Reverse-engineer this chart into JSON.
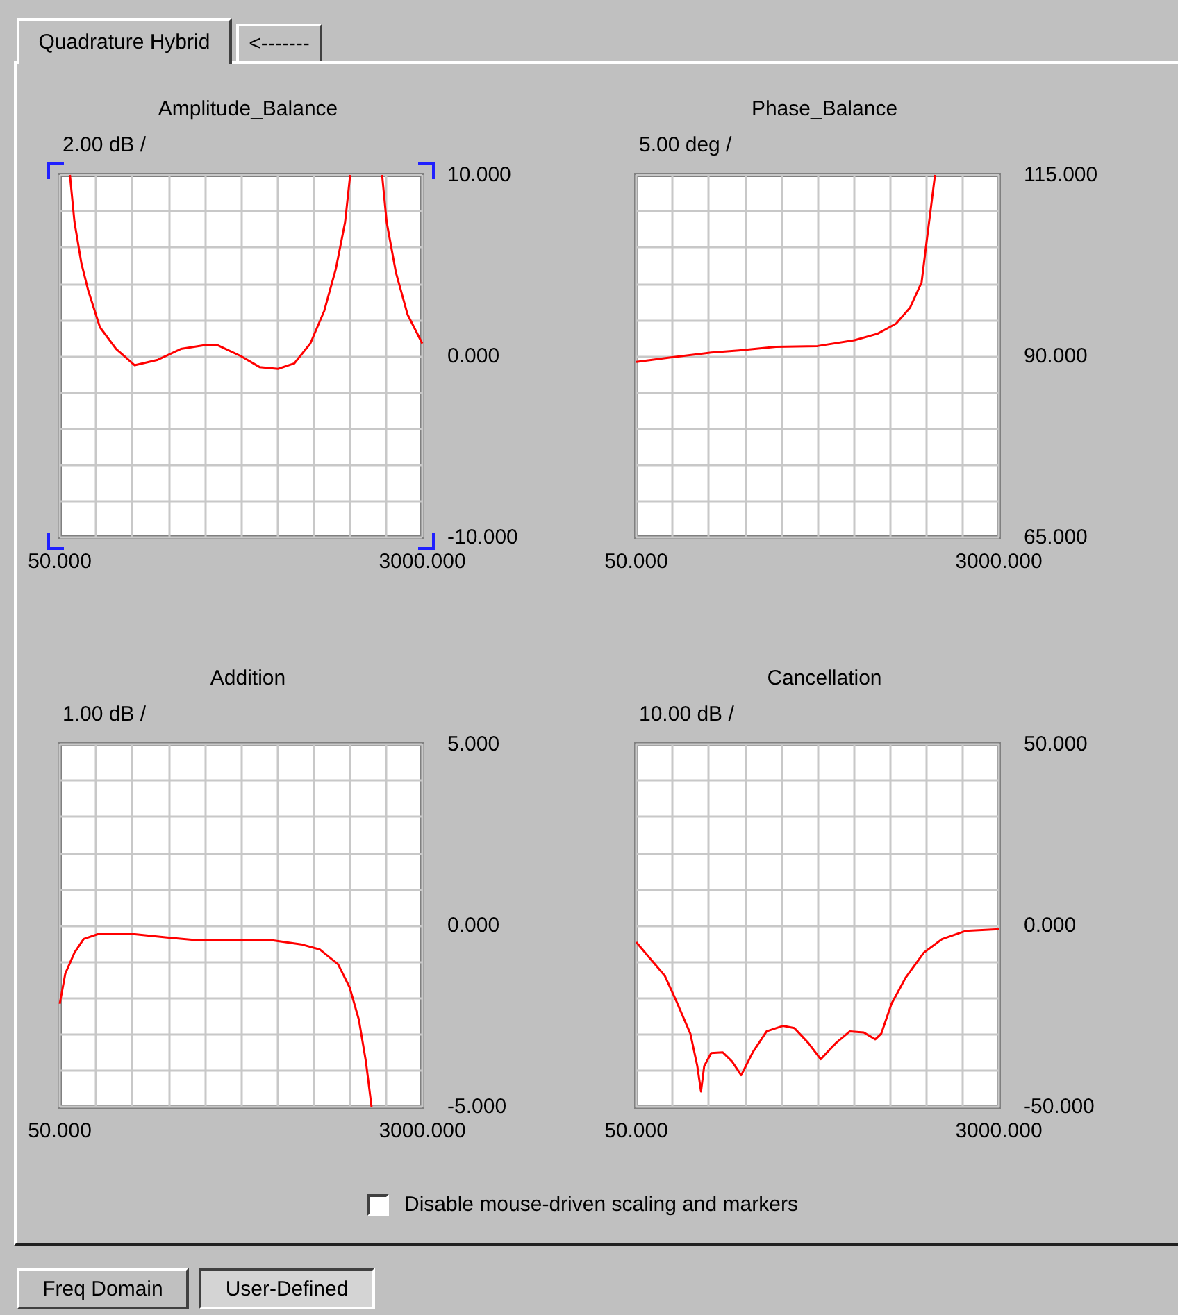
{
  "chart_data": [
    {
      "type": "line",
      "title": "Amplitude_Balance",
      "subtitle": "2.00 dB /",
      "color": "#ff0000",
      "marker": "none",
      "grid": true,
      "x": [
        133,
        170,
        227,
        283,
        377,
        509,
        660,
        848,
        1036,
        1224,
        1337,
        1525,
        1676,
        1826,
        1958,
        2089,
        2202,
        2296,
        2372,
        2413,
        2540,
        2673,
        2710,
        2786,
        2880,
        3000
      ],
      "values": [
        10,
        7.4,
        5.1,
        3.6,
        1.6,
        0.4,
        -0.5,
        -0.2,
        0.4,
        0.6,
        0.6,
        0.0,
        -0.6,
        -0.7,
        -0.4,
        0.7,
        2.5,
        4.8,
        7.4,
        10,
        null,
        10,
        7.4,
        4.6,
        2.3,
        0.7
      ],
      "xlim": [
        50,
        3000
      ],
      "xticks": [
        {
          "value": 50,
          "label": "50.000"
        },
        {
          "value": 345,
          "label": null
        },
        {
          "value": 640,
          "label": null
        },
        {
          "value": 935,
          "label": null
        },
        {
          "value": 1230,
          "label": null
        },
        {
          "value": 1525,
          "label": null
        },
        {
          "value": 1820,
          "label": null
        },
        {
          "value": 2115,
          "label": null
        },
        {
          "value": 2410,
          "label": null
        },
        {
          "value": 2705,
          "label": null
        },
        {
          "value": 3000,
          "label": "3000.000"
        }
      ],
      "ylim": [
        -10,
        10
      ],
      "yticks": [
        {
          "value": -10,
          "label": "-10.000"
        },
        {
          "value": -8,
          "label": null
        },
        {
          "value": -6,
          "label": null
        },
        {
          "value": -4,
          "label": null
        },
        {
          "value": -2,
          "label": null
        },
        {
          "value": 0,
          "label": "0.000"
        },
        {
          "value": 2,
          "label": null
        },
        {
          "value": 4,
          "label": null
        },
        {
          "value": 6,
          "label": null
        },
        {
          "value": 8,
          "label": null
        },
        {
          "value": 10,
          "label": "10.000"
        }
      ]
    },
    {
      "type": "line",
      "title": "Phase_Balance",
      "subtitle": "5.00 deg /",
      "color": "#ff0000",
      "marker": "none",
      "grid": true,
      "x": [
        50,
        321,
        660,
        885,
        1186,
        1525,
        1826,
        2014,
        2165,
        2278,
        2372,
        2409,
        2447,
        2481
      ],
      "values": [
        89.2,
        89.8,
        90.5,
        90.8,
        91.3,
        91.4,
        92.2,
        93.1,
        94.5,
        96.7,
        100.2,
        105.3,
        110.4,
        115
      ],
      "xlim": [
        50,
        3000
      ],
      "xticks": [
        {
          "value": 50,
          "label": "50.000"
        },
        {
          "value": 345,
          "label": null
        },
        {
          "value": 640,
          "label": null
        },
        {
          "value": 935,
          "label": null
        },
        {
          "value": 1230,
          "label": null
        },
        {
          "value": 1525,
          "label": null
        },
        {
          "value": 1820,
          "label": null
        },
        {
          "value": 2115,
          "label": null
        },
        {
          "value": 2410,
          "label": null
        },
        {
          "value": 2705,
          "label": null
        },
        {
          "value": 3000,
          "label": "3000.000"
        }
      ],
      "ylim": [
        65,
        115
      ],
      "yticks": [
        {
          "value": 65,
          "label": "65.000"
        },
        {
          "value": 70,
          "label": null
        },
        {
          "value": 75,
          "label": null
        },
        {
          "value": 80,
          "label": null
        },
        {
          "value": 85,
          "label": null
        },
        {
          "value": 90,
          "label": "90.000"
        },
        {
          "value": 95,
          "label": null
        },
        {
          "value": 100,
          "label": null
        },
        {
          "value": 105,
          "label": null
        },
        {
          "value": 110,
          "label": null
        },
        {
          "value": 115,
          "label": "115.000"
        }
      ]
    },
    {
      "type": "line",
      "title": "Addition",
      "subtitle": "1.00 dB /",
      "color": "#ff0000",
      "marker": "none",
      "grid": true,
      "x": [
        50,
        95,
        170,
        245,
        359,
        660,
        923,
        1186,
        1788,
        2014,
        2165,
        2315,
        2409,
        2484,
        2541,
        2587
      ],
      "values": [
        -2.16,
        -1.33,
        -0.75,
        -0.37,
        -0.24,
        -0.24,
        -0.33,
        -0.41,
        -0.41,
        -0.52,
        -0.66,
        -1.07,
        -1.71,
        -2.6,
        -3.75,
        -5
      ],
      "xlim": [
        50,
        3000
      ],
      "xticks": [
        {
          "value": 50,
          "label": "50.000"
        },
        {
          "value": 345,
          "label": null
        },
        {
          "value": 640,
          "label": null
        },
        {
          "value": 935,
          "label": null
        },
        {
          "value": 1230,
          "label": null
        },
        {
          "value": 1525,
          "label": null
        },
        {
          "value": 1820,
          "label": null
        },
        {
          "value": 2115,
          "label": null
        },
        {
          "value": 2410,
          "label": null
        },
        {
          "value": 2705,
          "label": null
        },
        {
          "value": 3000,
          "label": "3000.000"
        }
      ],
      "ylim": [
        -5,
        5
      ],
      "yticks": [
        {
          "value": -5,
          "label": "-5.000"
        },
        {
          "value": -4,
          "label": null
        },
        {
          "value": -3,
          "label": null
        },
        {
          "value": -2,
          "label": null
        },
        {
          "value": -1,
          "label": null
        },
        {
          "value": 0,
          "label": "0.000"
        },
        {
          "value": 1,
          "label": null
        },
        {
          "value": 2,
          "label": null
        },
        {
          "value": 3,
          "label": null
        },
        {
          "value": 4,
          "label": null
        },
        {
          "value": 5,
          "label": "5.000"
        }
      ]
    },
    {
      "type": "line",
      "title": "Cancellation",
      "subtitle": "10.00 dB /",
      "color": "#ff0000",
      "marker": "none",
      "grid": true,
      "x": [
        50,
        170,
        283,
        377,
        490,
        547,
        577,
        603,
        660,
        754,
        829,
        904,
        998,
        1111,
        1243,
        1337,
        1450,
        1551,
        1676,
        1788,
        1901,
        1995,
        2044,
        2127,
        2240,
        2390,
        2541,
        2729,
        3000
      ],
      "values": [
        -4.6,
        -9.4,
        -13.9,
        -20.9,
        -29.8,
        -38.8,
        -45.8,
        -38.8,
        -35.2,
        -35,
        -37.5,
        -41.3,
        -35,
        -29.2,
        -27.7,
        -28.3,
        -32.4,
        -36.9,
        -32.4,
        -29.2,
        -29.5,
        -31.4,
        -29.8,
        -21.6,
        -14.5,
        -7.5,
        -3.7,
        -1.5,
        -1
      ],
      "xlim": [
        50,
        3000
      ],
      "xticks": [
        {
          "value": 50,
          "label": "50.000"
        },
        {
          "value": 345,
          "label": null
        },
        {
          "value": 640,
          "label": null
        },
        {
          "value": 935,
          "label": null
        },
        {
          "value": 1230,
          "label": null
        },
        {
          "value": 1525,
          "label": null
        },
        {
          "value": 1820,
          "label": null
        },
        {
          "value": 2115,
          "label": null
        },
        {
          "value": 2410,
          "label": null
        },
        {
          "value": 2705,
          "label": null
        },
        {
          "value": 3000,
          "label": "3000.000"
        }
      ],
      "ylim": [
        -50,
        50
      ],
      "yticks": [
        {
          "value": -50,
          "label": "-50.000"
        },
        {
          "value": -40,
          "label": null
        },
        {
          "value": -30,
          "label": null
        },
        {
          "value": -20,
          "label": null
        },
        {
          "value": -10,
          "label": null
        },
        {
          "value": 0,
          "label": "0.000"
        },
        {
          "value": 10,
          "label": null
        },
        {
          "value": 20,
          "label": null
        },
        {
          "value": 30,
          "label": null
        },
        {
          "value": 40,
          "label": null
        },
        {
          "value": 50,
          "label": "50.000"
        }
      ]
    },
    {
      "type": "other",
      "annotations": [
        "Quadrature Hybrid",
        "<-------",
        "Disable mouse-driven scaling and markers",
        "Freq Domain",
        "User-Defined"
      ]
    }
  ]
}
